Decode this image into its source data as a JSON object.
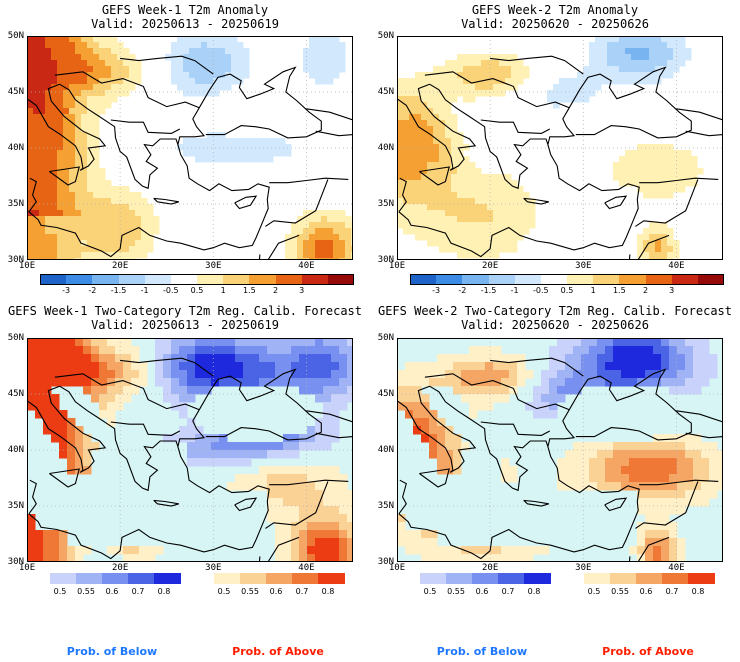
{
  "panels": [
    {
      "id": "p1",
      "title": "GEFS Week-1 T2m Anomaly",
      "valid": "Valid: 20250613 - 20250619",
      "field": "anomaly_w1"
    },
    {
      "id": "p2",
      "title": "GEFS Week-2 T2m Anomaly",
      "valid": "Valid: 20250620 - 20250626",
      "field": "anomaly_w2"
    },
    {
      "id": "p3",
      "title": "GEFS Week-1 Two-Category T2m Reg. Calib. Forecast",
      "valid": "Valid: 20250613 - 20250619",
      "field": "prob_w1"
    },
    {
      "id": "p4",
      "title": "GEFS Week-2 Two-Category T2m Reg. Calib. Forecast",
      "valid": "Valid: 20250620 - 20250626",
      "field": "prob_w2"
    }
  ],
  "lat_labels": [
    "50N",
    "45N",
    "40N",
    "35N",
    "30N"
  ],
  "lon_labels": [
    "10E",
    "20E",
    "30E",
    "40E"
  ],
  "anomaly_colorbar": {
    "labels": [
      "-3",
      "-2",
      "-1.5",
      "-1",
      "-0.5",
      "0.5",
      "1",
      "1.5",
      "2",
      "3"
    ],
    "colors": [
      "#1e64c8",
      "#3c8ce6",
      "#78b4f0",
      "#aad2f8",
      "#d2e8fc",
      "#ffffff",
      "#fff0b4",
      "#fad278",
      "#f5a032",
      "#e66414",
      "#c82814",
      "#960a0a"
    ]
  },
  "prob_colorbar_below": {
    "labels": [
      "0.5",
      "0.55",
      "0.6",
      "0.7",
      "0.8"
    ],
    "colors": [
      "#c8d2fa",
      "#a0b4f5",
      "#7891f0",
      "#4b64e6",
      "#1e28dc"
    ]
  },
  "prob_colorbar_above": {
    "labels": [
      "0.5",
      "0.55",
      "0.6",
      "0.7",
      "0.8"
    ],
    "colors": [
      "#fff0c8",
      "#fad296",
      "#f5a564",
      "#f07837",
      "#eb3c14"
    ]
  },
  "legend": {
    "below": "Prob. of Below",
    "above": "Prob. of Above"
  },
  "colors": {
    "sea": "#d7f5f5",
    "frame": "#000000",
    "grid": "#b4b4b4"
  }
}
